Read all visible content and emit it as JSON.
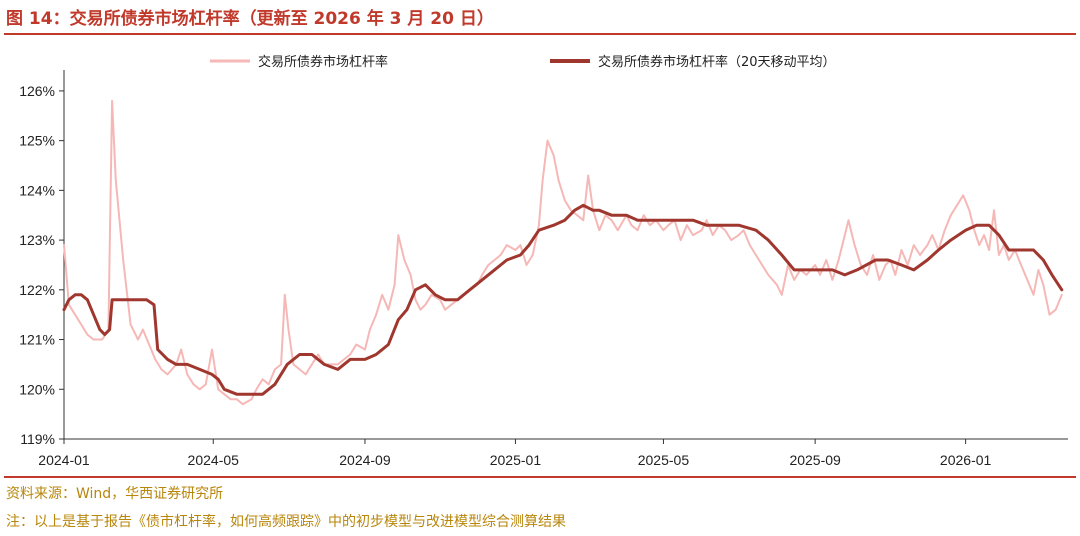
{
  "title": "图 14：交易所债券市场杠杆率（更新至 2026 年 3 月 20 日）",
  "source": "资料来源：Wind，华西证券研究所",
  "footnote": "注：以上是基于报告《债市杠杆率，如何高频跟踪》中的初步模型与改进模型综合测算结果",
  "colors": {
    "accent": "#c0392b",
    "raw": "#f5b8b6",
    "ma": "#a0372e",
    "note": "#b8860b"
  },
  "chart_data": {
    "type": "line",
    "title": "",
    "xlabel": "",
    "ylabel": "",
    "x_ticks": [
      "2024-01",
      "2024-05",
      "2024-09",
      "2025-01",
      "2025-05",
      "2025-09",
      "2026-01"
    ],
    "y_ticks": [
      "119%",
      "120%",
      "121%",
      "122%",
      "123%",
      "124%",
      "125%",
      "126%"
    ],
    "ylim": [
      119,
      126.3
    ],
    "xlim": [
      "2024-01-01",
      "2026-03-25"
    ],
    "legend_position": "top",
    "grid": false,
    "series": [
      {
        "name": "交易所债券市场杠杆率",
        "unit": "%",
        "points": [
          [
            "2024-01-01",
            122.9
          ],
          [
            "2024-01-05",
            121.7
          ],
          [
            "2024-01-10",
            121.5
          ],
          [
            "2024-01-15",
            121.3
          ],
          [
            "2024-01-20",
            121.1
          ],
          [
            "2024-01-25",
            121.0
          ],
          [
            "2024-02-01",
            121.0
          ],
          [
            "2024-02-06",
            121.2
          ],
          [
            "2024-02-09",
            125.8
          ],
          [
            "2024-02-12",
            124.2
          ],
          [
            "2024-02-18",
            122.6
          ],
          [
            "2024-02-24",
            121.3
          ],
          [
            "2024-03-01",
            121.0
          ],
          [
            "2024-03-05",
            121.2
          ],
          [
            "2024-03-10",
            120.9
          ],
          [
            "2024-03-15",
            120.6
          ],
          [
            "2024-03-20",
            120.4
          ],
          [
            "2024-03-25",
            120.3
          ],
          [
            "2024-04-01",
            120.5
          ],
          [
            "2024-04-05",
            120.8
          ],
          [
            "2024-04-10",
            120.3
          ],
          [
            "2024-04-15",
            120.1
          ],
          [
            "2024-04-20",
            120.0
          ],
          [
            "2024-04-25",
            120.1
          ],
          [
            "2024-04-30",
            120.8
          ],
          [
            "2024-05-05",
            120.0
          ],
          [
            "2024-05-10",
            119.9
          ],
          [
            "2024-05-15",
            119.8
          ],
          [
            "2024-05-20",
            119.8
          ],
          [
            "2024-05-25",
            119.7
          ],
          [
            "2024-06-01",
            119.8
          ],
          [
            "2024-06-05",
            120.0
          ],
          [
            "2024-06-10",
            120.2
          ],
          [
            "2024-06-15",
            120.1
          ],
          [
            "2024-06-20",
            120.4
          ],
          [
            "2024-06-25",
            120.5
          ],
          [
            "2024-06-28",
            121.9
          ],
          [
            "2024-07-01",
            121.2
          ],
          [
            "2024-07-05",
            120.5
          ],
          [
            "2024-07-10",
            120.4
          ],
          [
            "2024-07-15",
            120.3
          ],
          [
            "2024-07-20",
            120.5
          ],
          [
            "2024-07-25",
            120.7
          ],
          [
            "2024-07-30",
            120.5
          ],
          [
            "2024-08-05",
            120.5
          ],
          [
            "2024-08-10",
            120.5
          ],
          [
            "2024-08-15",
            120.6
          ],
          [
            "2024-08-20",
            120.7
          ],
          [
            "2024-08-25",
            120.9
          ],
          [
            "2024-09-01",
            120.8
          ],
          [
            "2024-09-05",
            121.2
          ],
          [
            "2024-09-10",
            121.5
          ],
          [
            "2024-09-15",
            121.9
          ],
          [
            "2024-09-20",
            121.6
          ],
          [
            "2024-09-25",
            122.1
          ],
          [
            "2024-09-28",
            123.1
          ],
          [
            "2024-10-03",
            122.6
          ],
          [
            "2024-10-08",
            122.3
          ],
          [
            "2024-10-12",
            121.8
          ],
          [
            "2024-10-16",
            121.6
          ],
          [
            "2024-10-20",
            121.7
          ],
          [
            "2024-10-25",
            121.9
          ],
          [
            "2024-11-01",
            121.8
          ],
          [
            "2024-11-05",
            121.6
          ],
          [
            "2024-11-10",
            121.7
          ],
          [
            "2024-11-15",
            121.8
          ],
          [
            "2024-11-20",
            121.9
          ],
          [
            "2024-11-25",
            122.0
          ],
          [
            "2024-12-01",
            122.1
          ],
          [
            "2024-12-05",
            122.3
          ],
          [
            "2024-12-10",
            122.5
          ],
          [
            "2024-12-15",
            122.6
          ],
          [
            "2024-12-20",
            122.7
          ],
          [
            "2024-12-25",
            122.9
          ],
          [
            "2025-01-01",
            122.8
          ],
          [
            "2025-01-05",
            122.9
          ],
          [
            "2025-01-10",
            122.5
          ],
          [
            "2025-01-15",
            122.7
          ],
          [
            "2025-01-20",
            123.3
          ],
          [
            "2025-01-23",
            124.2
          ],
          [
            "2025-01-27",
            125.0
          ],
          [
            "2025-02-01",
            124.7
          ],
          [
            "2025-02-05",
            124.2
          ],
          [
            "2025-02-10",
            123.8
          ],
          [
            "2025-02-15",
            123.6
          ],
          [
            "2025-02-20",
            123.5
          ],
          [
            "2025-02-25",
            123.4
          ],
          [
            "2025-03-01",
            124.3
          ],
          [
            "2025-03-05",
            123.6
          ],
          [
            "2025-03-10",
            123.2
          ],
          [
            "2025-03-15",
            123.5
          ],
          [
            "2025-03-20",
            123.4
          ],
          [
            "2025-03-25",
            123.2
          ],
          [
            "2025-04-01",
            123.5
          ],
          [
            "2025-04-05",
            123.3
          ],
          [
            "2025-04-10",
            123.2
          ],
          [
            "2025-04-15",
            123.5
          ],
          [
            "2025-04-20",
            123.3
          ],
          [
            "2025-04-25",
            123.4
          ],
          [
            "2025-05-01",
            123.2
          ],
          [
            "2025-05-05",
            123.3
          ],
          [
            "2025-05-10",
            123.4
          ],
          [
            "2025-05-15",
            123.0
          ],
          [
            "2025-05-20",
            123.3
          ],
          [
            "2025-05-25",
            123.1
          ],
          [
            "2025-06-01",
            123.2
          ],
          [
            "2025-06-05",
            123.4
          ],
          [
            "2025-06-10",
            123.1
          ],
          [
            "2025-06-15",
            123.3
          ],
          [
            "2025-06-20",
            123.2
          ],
          [
            "2025-06-25",
            123.0
          ],
          [
            "2025-07-01",
            123.1
          ],
          [
            "2025-07-05",
            123.2
          ],
          [
            "2025-07-10",
            122.9
          ],
          [
            "2025-07-15",
            122.7
          ],
          [
            "2025-07-20",
            122.5
          ],
          [
            "2025-07-25",
            122.3
          ],
          [
            "2025-08-01",
            122.1
          ],
          [
            "2025-08-05",
            121.9
          ],
          [
            "2025-08-10",
            122.5
          ],
          [
            "2025-08-15",
            122.2
          ],
          [
            "2025-08-20",
            122.4
          ],
          [
            "2025-08-25",
            122.3
          ],
          [
            "2025-09-01",
            122.5
          ],
          [
            "2025-09-05",
            122.3
          ],
          [
            "2025-09-10",
            122.6
          ],
          [
            "2025-09-15",
            122.2
          ],
          [
            "2025-09-20",
            122.6
          ],
          [
            "2025-09-25",
            123.1
          ],
          [
            "2025-09-28",
            123.4
          ],
          [
            "2025-10-03",
            122.9
          ],
          [
            "2025-10-08",
            122.5
          ],
          [
            "2025-10-13",
            122.3
          ],
          [
            "2025-10-18",
            122.7
          ],
          [
            "2025-10-23",
            122.2
          ],
          [
            "2025-10-28",
            122.5
          ],
          [
            "2025-11-01",
            122.6
          ],
          [
            "2025-11-05",
            122.3
          ],
          [
            "2025-11-10",
            122.8
          ],
          [
            "2025-11-15",
            122.5
          ],
          [
            "2025-11-20",
            122.9
          ],
          [
            "2025-11-25",
            122.7
          ],
          [
            "2025-12-01",
            122.9
          ],
          [
            "2025-12-05",
            123.1
          ],
          [
            "2025-12-10",
            122.8
          ],
          [
            "2025-12-15",
            123.2
          ],
          [
            "2025-12-20",
            123.5
          ],
          [
            "2025-12-25",
            123.7
          ],
          [
            "2025-12-30",
            123.9
          ],
          [
            "2026-01-04",
            123.6
          ],
          [
            "2026-01-08",
            123.2
          ],
          [
            "2026-01-12",
            122.9
          ],
          [
            "2026-01-16",
            123.1
          ],
          [
            "2026-01-20",
            122.8
          ],
          [
            "2026-01-24",
            123.6
          ],
          [
            "2026-01-28",
            122.7
          ],
          [
            "2026-02-01",
            122.9
          ],
          [
            "2026-02-05",
            122.6
          ],
          [
            "2026-02-10",
            122.8
          ],
          [
            "2026-02-15",
            122.5
          ],
          [
            "2026-02-20",
            122.2
          ],
          [
            "2026-02-25",
            121.9
          ],
          [
            "2026-03-01",
            122.4
          ],
          [
            "2026-03-05",
            122.1
          ],
          [
            "2026-03-10",
            121.5
          ],
          [
            "2026-03-15",
            121.6
          ],
          [
            "2026-03-20",
            121.9
          ]
        ]
      },
      {
        "name": "交易所债券市场杠杆率（20天移动平均）",
        "unit": "%",
        "points": [
          [
            "2024-01-01",
            121.6
          ],
          [
            "2024-01-05",
            121.8
          ],
          [
            "2024-01-10",
            121.9
          ],
          [
            "2024-01-15",
            121.9
          ],
          [
            "2024-01-20",
            121.8
          ],
          [
            "2024-01-25",
            121.5
          ],
          [
            "2024-01-30",
            121.2
          ],
          [
            "2024-02-03",
            121.1
          ],
          [
            "2024-02-07",
            121.2
          ],
          [
            "2024-02-09",
            121.8
          ],
          [
            "2024-02-20",
            121.8
          ],
          [
            "2024-03-01",
            121.8
          ],
          [
            "2024-03-08",
            121.8
          ],
          [
            "2024-03-14",
            121.7
          ],
          [
            "2024-03-17",
            120.8
          ],
          [
            "2024-03-25",
            120.6
          ],
          [
            "2024-04-01",
            120.5
          ],
          [
            "2024-04-10",
            120.5
          ],
          [
            "2024-04-20",
            120.4
          ],
          [
            "2024-04-30",
            120.3
          ],
          [
            "2024-05-05",
            120.2
          ],
          [
            "2024-05-10",
            120.0
          ],
          [
            "2024-05-20",
            119.9
          ],
          [
            "2024-05-30",
            119.9
          ],
          [
            "2024-06-10",
            119.9
          ],
          [
            "2024-06-20",
            120.1
          ],
          [
            "2024-06-30",
            120.5
          ],
          [
            "2024-07-10",
            120.7
          ],
          [
            "2024-07-20",
            120.7
          ],
          [
            "2024-07-30",
            120.5
          ],
          [
            "2024-08-10",
            120.4
          ],
          [
            "2024-08-20",
            120.6
          ],
          [
            "2024-09-01",
            120.6
          ],
          [
            "2024-09-10",
            120.7
          ],
          [
            "2024-09-20",
            120.9
          ],
          [
            "2024-09-28",
            121.4
          ],
          [
            "2024-10-05",
            121.6
          ],
          [
            "2024-10-12",
            122.0
          ],
          [
            "2024-10-20",
            122.1
          ],
          [
            "2024-10-28",
            121.9
          ],
          [
            "2024-11-05",
            121.8
          ],
          [
            "2024-11-15",
            121.8
          ],
          [
            "2024-11-25",
            122.0
          ],
          [
            "2024-12-05",
            122.2
          ],
          [
            "2024-12-15",
            122.4
          ],
          [
            "2024-12-25",
            122.6
          ],
          [
            "2025-01-05",
            122.7
          ],
          [
            "2025-01-12",
            122.9
          ],
          [
            "2025-01-20",
            123.2
          ],
          [
            "2025-02-01",
            123.3
          ],
          [
            "2025-02-10",
            123.4
          ],
          [
            "2025-02-18",
            123.6
          ],
          [
            "2025-02-25",
            123.7
          ],
          [
            "2025-03-05",
            123.6
          ],
          [
            "2025-03-10",
            123.6
          ],
          [
            "2025-03-20",
            123.5
          ],
          [
            "2025-04-01",
            123.5
          ],
          [
            "2025-04-10",
            123.4
          ],
          [
            "2025-04-20",
            123.4
          ],
          [
            "2025-05-01",
            123.4
          ],
          [
            "2025-05-15",
            123.4
          ],
          [
            "2025-05-25",
            123.4
          ],
          [
            "2025-06-05",
            123.3
          ],
          [
            "2025-06-20",
            123.3
          ],
          [
            "2025-07-01",
            123.3
          ],
          [
            "2025-07-15",
            123.2
          ],
          [
            "2025-07-25",
            123.0
          ],
          [
            "2025-08-05",
            122.7
          ],
          [
            "2025-08-15",
            122.4
          ],
          [
            "2025-08-25",
            122.4
          ],
          [
            "2025-09-05",
            122.4
          ],
          [
            "2025-09-15",
            122.4
          ],
          [
            "2025-09-25",
            122.3
          ],
          [
            "2025-10-05",
            122.4
          ],
          [
            "2025-10-20",
            122.6
          ],
          [
            "2025-10-30",
            122.6
          ],
          [
            "2025-11-10",
            122.5
          ],
          [
            "2025-11-20",
            122.4
          ],
          [
            "2025-12-01",
            122.6
          ],
          [
            "2025-12-10",
            122.8
          ],
          [
            "2025-12-20",
            123.0
          ],
          [
            "2026-01-01",
            123.2
          ],
          [
            "2026-01-10",
            123.3
          ],
          [
            "2026-01-20",
            123.3
          ],
          [
            "2026-01-28",
            123.1
          ],
          [
            "2026-02-05",
            122.8
          ],
          [
            "2026-02-15",
            122.8
          ],
          [
            "2026-02-25",
            122.8
          ],
          [
            "2026-03-05",
            122.6
          ],
          [
            "2026-03-12",
            122.3
          ],
          [
            "2026-03-20",
            122.0
          ]
        ]
      }
    ]
  }
}
